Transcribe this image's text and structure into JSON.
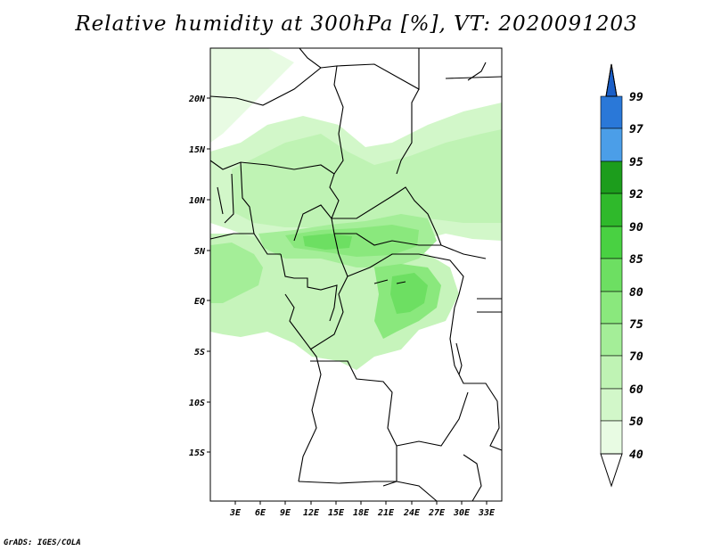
{
  "title": "Relative humidity at 300hPa [%], VT: 2020091203",
  "credit": "GrADS: IGES/COLA",
  "map": {
    "lat_labels": [
      "20N",
      "15N",
      "10N",
      "5N",
      "EQ",
      "5S",
      "10S",
      "15S"
    ],
    "lon_labels": [
      "3E",
      "6E",
      "9E",
      "12E",
      "15E",
      "18E",
      "21E",
      "24E",
      "27E",
      "30E",
      "33E"
    ]
  },
  "colorbar": {
    "labels": [
      "99",
      "97",
      "95",
      "92",
      "90",
      "85",
      "80",
      "75",
      "70",
      "60",
      "50",
      "40"
    ],
    "colors": {
      "c40_50": "#e8fbe3",
      "c50_60": "#d2f7c9",
      "c60_70": "#bff3b4",
      "c70_75": "#a4ee98",
      "c75_80": "#8ae87d",
      "c80_85": "#6ddf62",
      "c85_90": "#49d142",
      "c90_92": "#2fb92b",
      "c92_95": "#1c9d1c",
      "c95_97": "#4b9ee8",
      "c97_99": "#2a78d8",
      "c99_plus": "#1a5fc8"
    }
  }
}
